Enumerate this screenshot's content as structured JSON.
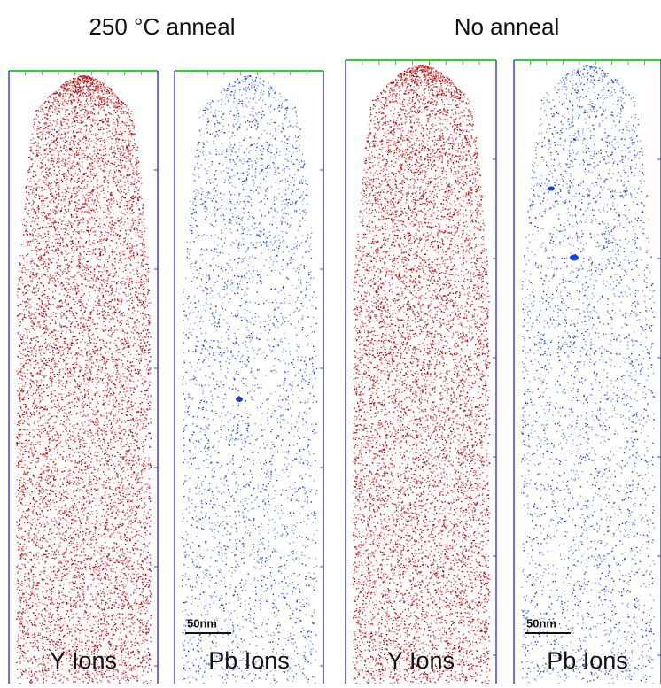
{
  "titles": [
    "250 °C anneal",
    "No anneal"
  ],
  "panels": [
    {
      "label": "Y Ions"
    },
    {
      "label": "Pb Ions",
      "scale_bar": "50nm"
    },
    {
      "label": "Y Ions"
    },
    {
      "label": "Pb Ions",
      "scale_bar": "50nm"
    }
  ]
}
